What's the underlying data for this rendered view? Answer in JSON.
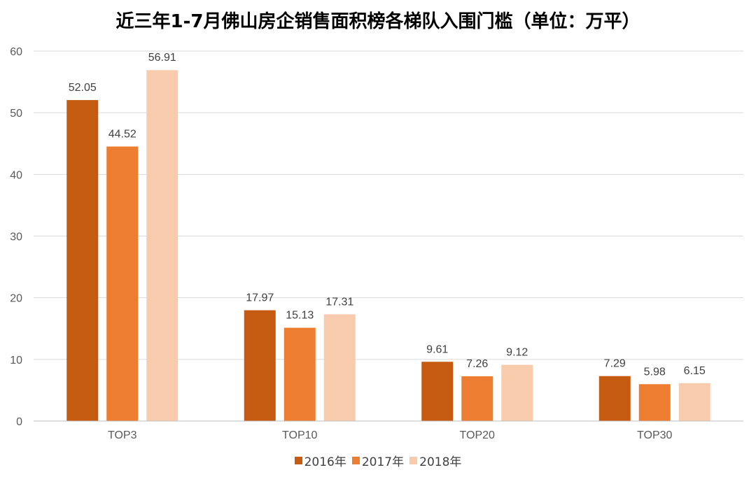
{
  "chart_data": {
    "type": "bar",
    "title": "近三年1-7月佛山房企销售面积榜各梯队入围门槛（单位：万平）",
    "categories": [
      "TOP3",
      "TOP10",
      "TOP20",
      "TOP30"
    ],
    "series": [
      {
        "name": "2016年",
        "color": "#C55A11",
        "values": [
          52.05,
          17.97,
          9.61,
          7.29
        ]
      },
      {
        "name": "2017年",
        "color": "#ED7D31",
        "values": [
          44.52,
          15.13,
          7.26,
          5.98
        ]
      },
      {
        "name": "2018年",
        "color": "#F8CBAD",
        "values": [
          56.91,
          17.31,
          9.12,
          6.15
        ]
      }
    ],
    "ylim": [
      0,
      60
    ],
    "yticks": [
      0,
      10,
      20,
      30,
      40,
      50,
      60
    ],
    "grid": true,
    "legend_position": "bottom",
    "data_labels": true,
    "xlabel": "",
    "ylabel": ""
  }
}
